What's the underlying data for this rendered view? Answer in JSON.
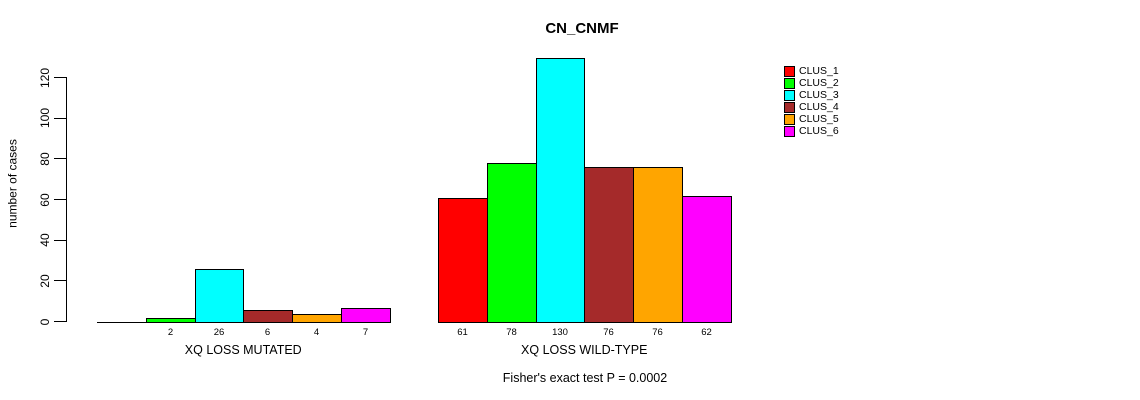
{
  "title": "CN_CNMF",
  "y_axis": {
    "label": "number of cases",
    "ticks": [
      "0",
      "20",
      "40",
      "60",
      "80",
      "100",
      "120"
    ]
  },
  "footer": "Fisher's exact test P = 0.0002",
  "legend": {
    "items": [
      {
        "label": "CLUS_1",
        "color": "#FF0000"
      },
      {
        "label": "CLUS_2",
        "color": "#00FF00"
      },
      {
        "label": "CLUS_3",
        "color": "#00FFFF"
      },
      {
        "label": "CLUS_4",
        "color": "#A52A2A"
      },
      {
        "label": "CLUS_5",
        "color": "#FFA500"
      },
      {
        "label": "CLUS_6",
        "color": "#FF00FF"
      }
    ]
  },
  "chart_data": {
    "type": "bar",
    "title": "CN_CNMF",
    "ylabel": "number of cases",
    "ylim": [
      0,
      130
    ],
    "yticks": [
      0,
      20,
      40,
      60,
      80,
      100,
      120
    ],
    "grid": false,
    "legend_position": "top-right",
    "categories": [
      "XQ LOSS MUTATED",
      "XQ LOSS WILD-TYPE"
    ],
    "series": [
      {
        "name": "CLUS_1",
        "color": "#FF0000",
        "values": [
          0,
          61
        ]
      },
      {
        "name": "CLUS_2",
        "color": "#00FF00",
        "values": [
          2,
          78
        ]
      },
      {
        "name": "CLUS_3",
        "color": "#00FFFF",
        "values": [
          26,
          130
        ]
      },
      {
        "name": "CLUS_4",
        "color": "#A52A2A",
        "values": [
          6,
          76
        ]
      },
      {
        "name": "CLUS_5",
        "color": "#FFA500",
        "values": [
          4,
          76
        ]
      },
      {
        "name": "CLUS_6",
        "color": "#FF00FF",
        "values": [
          7,
          62
        ]
      }
    ],
    "bar_value_labels": [
      [
        "",
        "2",
        "26",
        "6",
        "4",
        "7"
      ],
      [
        "61",
        "78",
        "130",
        "76",
        "76",
        "62"
      ]
    ],
    "annotation": "Fisher's exact test P = 0.0002"
  }
}
